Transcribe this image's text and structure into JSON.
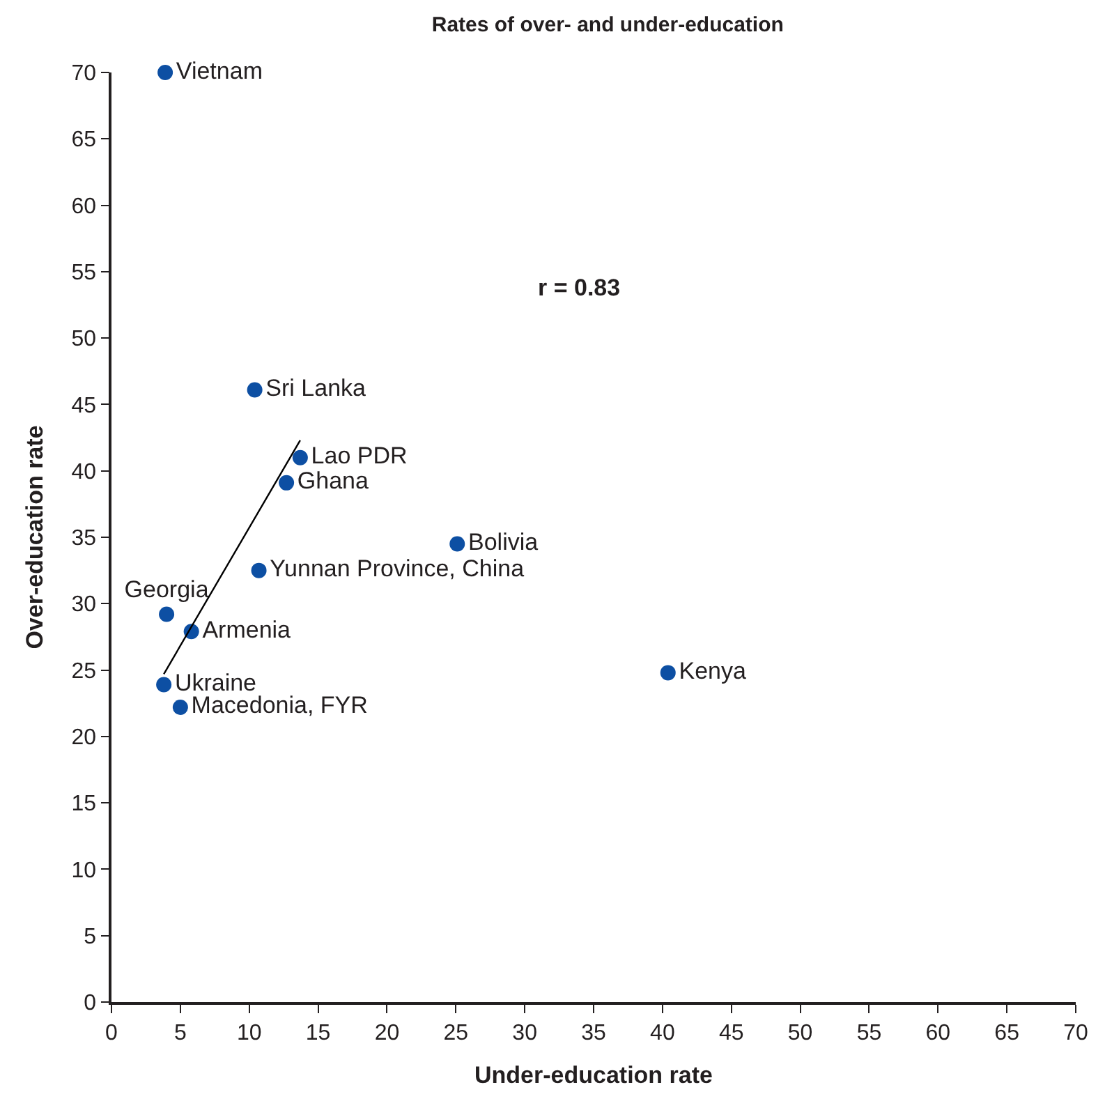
{
  "chart_data": {
    "type": "scatter",
    "title": "Rates of over- and under-education",
    "xlabel": "Under-education rate",
    "ylabel": "Over-education rate",
    "xlim": [
      0,
      70
    ],
    "xticks": [
      0,
      5,
      10,
      15,
      20,
      25,
      30,
      35,
      40,
      45,
      50,
      55,
      60,
      65,
      70
    ],
    "ylim": [
      0,
      70
    ],
    "yticks": [
      0,
      5,
      10,
      15,
      20,
      25,
      30,
      35,
      40,
      45,
      50,
      55,
      60,
      65,
      70
    ],
    "grid": false,
    "marker": "circle",
    "annotations": [
      "r = 0.83"
    ],
    "series": [
      {
        "name": "Vietnam",
        "color": "#0d4fa3",
        "x": [
          3.9
        ],
        "values": [
          70
        ]
      },
      {
        "name": "Sri Lanka",
        "color": "#0d4fa3",
        "x": [
          10.4
        ],
        "values": [
          46.1
        ]
      },
      {
        "name": "Lao PDR",
        "color": "#0d4fa3",
        "x": [
          13.7
        ],
        "values": [
          41.0
        ]
      },
      {
        "name": "Ghana",
        "color": "#0d4fa3",
        "x": [
          12.7
        ],
        "values": [
          39.1
        ]
      },
      {
        "name": "Bolivia",
        "color": "#0d4fa3",
        "x": [
          25.1
        ],
        "values": [
          34.5
        ]
      },
      {
        "name": "Yunnan Province, China",
        "color": "#0d4fa3",
        "x": [
          10.7
        ],
        "values": [
          32.5
        ]
      },
      {
        "name": "Georgia",
        "color": "#0d4fa3",
        "x": [
          4.0
        ],
        "values": [
          29.2
        ]
      },
      {
        "name": "Armenia",
        "color": "#0d4fa3",
        "x": [
          5.8
        ],
        "values": [
          27.9
        ]
      },
      {
        "name": "Ukraine",
        "color": "#0d4fa3",
        "x": [
          3.8
        ],
        "values": [
          23.9
        ]
      },
      {
        "name": "Macedonia, FYR",
        "color": "#0d4fa3",
        "x": [
          5.0
        ],
        "values": [
          22.2
        ]
      },
      {
        "name": "Kenya",
        "color": "#0d4fa3",
        "x": [
          40.4
        ],
        "values": [
          24.8
        ]
      },
      {
        "type": "line",
        "color": "#000000",
        "x": [
          3.8,
          13.7
        ],
        "values": [
          24.7,
          42.3
        ],
        "line_style": "solid",
        "marker": "none"
      }
    ]
  }
}
